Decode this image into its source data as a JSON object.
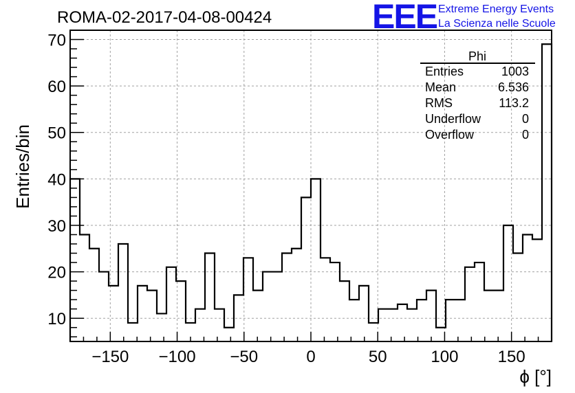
{
  "chart_data": {
    "type": "histogram",
    "title": "ROMA-02-2017-04-08-00424",
    "xlabel": "ϕ [°]",
    "ylabel": "Entries/bin",
    "xlim": [
      -180,
      180
    ],
    "ylim": [
      5,
      72
    ],
    "grid": true,
    "x_ticks": [
      -150,
      -100,
      -50,
      0,
      50,
      100,
      150
    ],
    "x_tick_labels": [
      "−150",
      "−100",
      "−50",
      "0",
      "50",
      "100",
      "150"
    ],
    "y_ticks": [
      10,
      20,
      30,
      40,
      50,
      60,
      70
    ],
    "y_tick_labels": [
      "10",
      "20",
      "30",
      "40",
      "50",
      "60",
      "70"
    ],
    "bin_edges_start": -180,
    "bin_width": 7.2,
    "counts": [
      40,
      28,
      25,
      20,
      17,
      26,
      9,
      17,
      16,
      11,
      21,
      18,
      9,
      12,
      24,
      12,
      8,
      15,
      23,
      16,
      20,
      20,
      24,
      25,
      36,
      40,
      23,
      22,
      18,
      14,
      17,
      9,
      12,
      12,
      13,
      12,
      14,
      16,
      8,
      14,
      14,
      21,
      22,
      16,
      16,
      30,
      24,
      28,
      27,
      69
    ],
    "stats": {
      "name": "Phi",
      "rows": [
        {
          "label": "Entries",
          "value": "1003"
        },
        {
          "label": "Mean",
          "value": "6.536"
        },
        {
          "label": "RMS",
          "value": "113.2"
        },
        {
          "label": "Underflow",
          "value": "0"
        },
        {
          "label": "Overflow",
          "value": "0"
        }
      ]
    },
    "line_color": "#000000",
    "grid_color": "#a0a0a0"
  },
  "logo": {
    "mark": "EEE",
    "line1": "Extreme Energy Events",
    "line2": "La Scienza nelle Scuole",
    "color": "#1414e6"
  }
}
